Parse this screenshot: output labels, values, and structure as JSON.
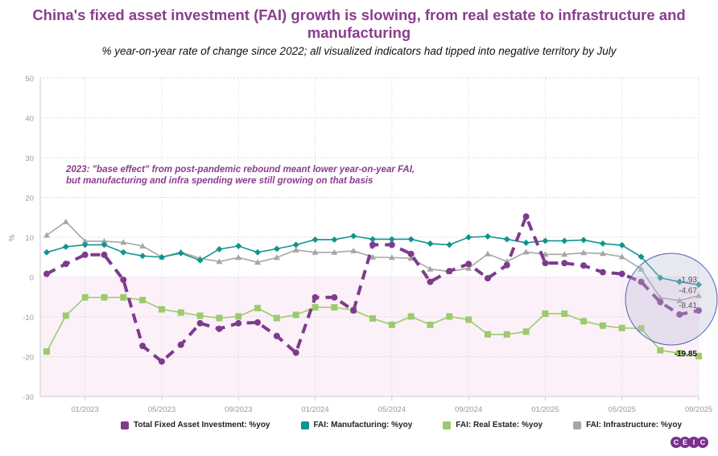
{
  "chart_data": {
    "type": "line",
    "title": "China's fixed asset investment (FAI) growth is slowing, from real estate to infrastructure and manufacturing",
    "subtitle": "% year-on-year rate of change since 2022; all visualized indicators had tipped into negative territory by July",
    "ylabel": "%",
    "ylim": [
      -30,
      50
    ],
    "yticks": [
      50,
      40,
      30,
      20,
      10,
      0,
      -10,
      -20,
      -30
    ],
    "x_start": "2022-11",
    "x_end": "2025-09",
    "xticks": [
      "01/2023",
      "05/2023",
      "09/2023",
      "01/2024",
      "05/2024",
      "09/2024",
      "01/2025",
      "05/2025",
      "09/2025"
    ],
    "grid": true,
    "legend_position": "bottom",
    "annotation": "2023: \"base effect\" from post-pandemic rebound meant lower year-on-year FAI, but manufacturing and infra spending were still growing on that basis",
    "end_labels": [
      "-1.93",
      "-4.67",
      "-8.41",
      "-19.85"
    ],
    "negative_region_shaded": true,
    "series": [
      {
        "name": "Total Fixed Asset Investment: %yoy",
        "color": "#7e3b8e",
        "dashed": true,
        "marker": "circle",
        "values": [
          0.8,
          3.3,
          5.6,
          5.6,
          -0.7,
          -17.3,
          -21.2,
          -17.0,
          -11.6,
          -13.0,
          -11.6,
          -11.4,
          -14.8,
          -19.0,
          -5.1,
          -5.1,
          -8.4,
          8.1,
          8.1,
          5.8,
          -1.2,
          1.5,
          3.3,
          -0.3,
          3.0,
          15.2,
          3.5,
          3.5,
          2.9,
          1.2,
          0.8,
          -1.2,
          -6.3,
          -9.4,
          -8.41
        ]
      },
      {
        "name": "FAI: Manufacturing: %yoy",
        "color": "#0f9590",
        "dashed": false,
        "marker": "diamond",
        "values": [
          6.2,
          7.6,
          8.1,
          8.1,
          6.2,
          5.3,
          5.0,
          6.0,
          4.2,
          7.0,
          7.8,
          6.2,
          7.1,
          8.1,
          9.4,
          9.4,
          10.3,
          9.5,
          9.5,
          9.5,
          8.4,
          8.1,
          10.0,
          10.2,
          9.5,
          8.6,
          9.1,
          9.1,
          9.3,
          8.4,
          8.0,
          5.1,
          -0.2,
          -1.2,
          -1.93
        ]
      },
      {
        "name": "FAI: Real Estate: %yoy",
        "color": "#9ccb6b",
        "dashed": false,
        "marker": "square",
        "values": [
          -18.7,
          -9.7,
          -5.1,
          -5.1,
          -5.1,
          -5.8,
          -8.1,
          -8.9,
          -9.7,
          -10.3,
          -9.9,
          -7.8,
          -10.3,
          -9.5,
          -7.6,
          -7.6,
          -8.3,
          -10.4,
          -12.0,
          -9.9,
          -12.0,
          -9.9,
          -10.7,
          -14.4,
          -14.4,
          -13.7,
          -9.2,
          -9.2,
          -11.1,
          -12.2,
          -12.8,
          -12.9,
          -18.4,
          -19.1,
          -19.85
        ]
      },
      {
        "name": "FAI: Infrastructure: %yoy",
        "color": "#a6a6a6",
        "dashed": false,
        "marker": "triangle",
        "values": [
          10.5,
          13.9,
          9.0,
          9.0,
          8.7,
          7.8,
          5.0,
          6.3,
          4.7,
          3.9,
          4.9,
          3.7,
          4.9,
          6.8,
          6.2,
          6.2,
          6.6,
          5.0,
          4.9,
          4.7,
          2.0,
          1.4,
          2.2,
          5.8,
          3.9,
          6.3,
          5.7,
          5.7,
          6.1,
          5.9,
          5.1,
          2.0,
          -5.2,
          -5.9,
          -4.67
        ]
      }
    ]
  },
  "logo": "CEIC"
}
